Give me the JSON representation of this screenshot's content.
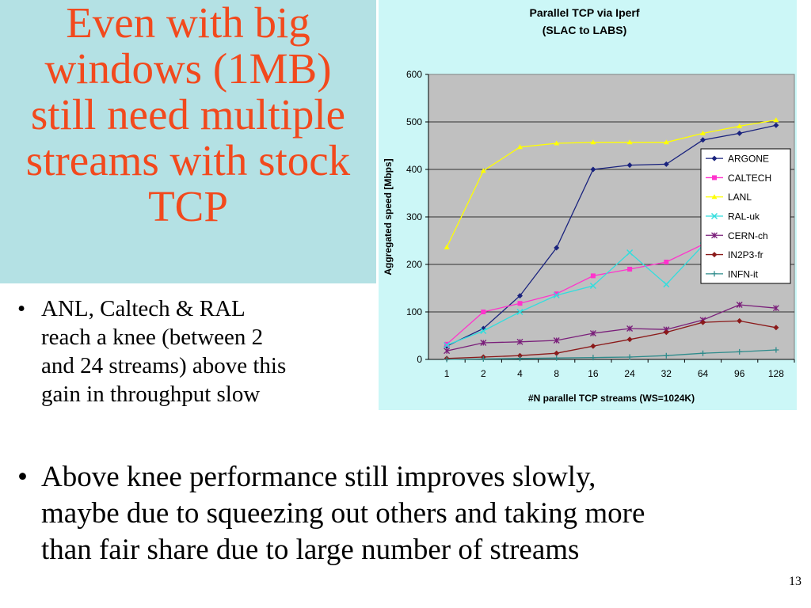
{
  "slide": {
    "title_lines": [
      "Even with big",
      "windows (1MB)",
      "still need multiple",
      "streams with stock",
      "TCP"
    ],
    "bullet1_lines": [
      "ANL, Caltech & RAL",
      "reach a knee (between 2",
      "and 24 streams) above this",
      "gain in throughput slow"
    ],
    "bullet2_lines": [
      "Above knee performance still improves slowly,",
      "maybe due to squeezing out others and taking more",
      "than fair share due to large number of streams"
    ],
    "bullet_glyph": "•",
    "page_number": "13"
  },
  "chart_data": {
    "type": "line",
    "title": [
      "Parallel TCP via Iperf",
      "(SLAC to LABS)"
    ],
    "xlabel": "#N parallel TCP streams (WS=1024K)",
    "ylabel": "Aggregated speed [Mbps]",
    "ylim": [
      0,
      600
    ],
    "yticks": [
      0,
      100,
      200,
      300,
      400,
      500,
      600
    ],
    "grid": true,
    "legend_position": "right",
    "categories": [
      "1",
      "2",
      "4",
      "8",
      "16",
      "24",
      "32",
      "64",
      "96",
      "128"
    ],
    "series": [
      {
        "name": "ARGONE",
        "color": "#1a237e",
        "marker": "diamond",
        "values": [
          28,
          65,
          134,
          235,
          400,
          409,
          411,
          462,
          476,
          493
        ]
      },
      {
        "name": "CALTECH",
        "color": "#ff33cc",
        "marker": "square",
        "values": [
          32,
          100,
          118,
          138,
          176,
          190,
          205,
          242,
          269,
          288
        ]
      },
      {
        "name": "LANL",
        "color": "#ffff00",
        "marker": "triangle",
        "values": [
          236,
          397,
          447,
          455,
          457,
          457,
          457,
          476,
          491,
          504
        ]
      },
      {
        "name": "RAL-uk",
        "color": "#33dddd",
        "marker": "x",
        "values": [
          30,
          60,
          100,
          135,
          155,
          225,
          158,
          240,
          240,
          232
        ]
      },
      {
        "name": "CERN-ch",
        "color": "#7a1f7a",
        "marker": "star",
        "values": [
          18,
          35,
          37,
          40,
          55,
          65,
          63,
          83,
          115,
          108
        ]
      },
      {
        "name": "IN2P3-fr",
        "color": "#8b1a1a",
        "marker": "circle",
        "values": [
          2,
          5,
          8,
          13,
          28,
          42,
          57,
          78,
          81,
          67
        ]
      },
      {
        "name": "INFN-it",
        "color": "#2e8b8b",
        "marker": "plus",
        "values": [
          0,
          1,
          2,
          3,
          4,
          5,
          8,
          13,
          16,
          20
        ]
      }
    ]
  }
}
